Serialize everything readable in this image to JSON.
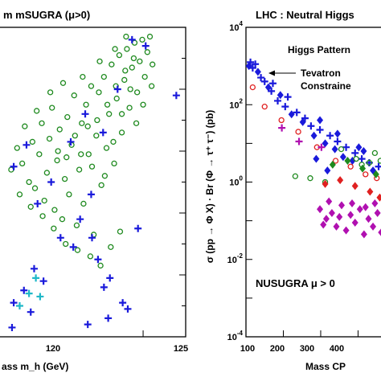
{
  "chart_data": [
    {
      "type": "scatter",
      "title": "m mSUGRA (μ>0)",
      "xlabel": "ass m_h (GeV)",
      "x_ticks": [
        "120",
        "125"
      ],
      "xlim": [
        103,
        125
      ],
      "ylim": [
        0,
        10
      ],
      "grid": false,
      "series": [
        {
          "marker": "circle-open",
          "color": "#1f8a1f",
          "points": [
            [
              105.2,
              6.1
            ],
            [
              105.8,
              5.6
            ],
            [
              106.1,
              6.8
            ],
            [
              106.6,
              5.0
            ],
            [
              107.0,
              6.3
            ],
            [
              107.3,
              4.8
            ],
            [
              107.8,
              5.9
            ],
            [
              108.1,
              6.9
            ],
            [
              108.4,
              4.4
            ],
            [
              108.7,
              5.3
            ],
            [
              109.0,
              6.4
            ],
            [
              109.3,
              7.4
            ],
            [
              109.6,
              4.1
            ],
            [
              109.9,
              5.7
            ],
            [
              110.2,
              6.7
            ],
            [
              110.5,
              3.8
            ],
            [
              110.8,
              5.1
            ],
            [
              111.1,
              7.1
            ],
            [
              111.3,
              4.6
            ],
            [
              111.6,
              6.2
            ],
            [
              111.9,
              7.8
            ],
            [
              112.2,
              3.6
            ],
            [
              112.5,
              5.4
            ],
            [
              112.8,
              6.9
            ],
            [
              113.0,
              4.3
            ],
            [
              113.3,
              7.5
            ],
            [
              113.6,
              5.9
            ],
            [
              113.9,
              8.1
            ],
            [
              114.2,
              3.3
            ],
            [
              114.5,
              6.5
            ],
            [
              114.8,
              7.9
            ],
            [
              115.1,
              4.9
            ],
            [
              115.4,
              8.4
            ],
            [
              115.7,
              6.1
            ],
            [
              116.0,
              7.2
            ],
            [
              116.3,
              8.8
            ],
            [
              116.6,
              5.6
            ],
            [
              116.9,
              7.7
            ],
            [
              117.2,
              9.1
            ],
            [
              117.5,
              6.6
            ],
            [
              117.8,
              8.3
            ],
            [
              118.1,
              9.3
            ],
            [
              118.4,
              7.4
            ],
            [
              118.7,
              8.7
            ],
            [
              119.0,
              9.5
            ],
            [
              119.3,
              7.9
            ],
            [
              119.6,
              8.9
            ],
            [
              119.9,
              9.6
            ],
            [
              120.2,
              8.4
            ],
            [
              120.5,
              9.2
            ],
            [
              120.8,
              9.7
            ],
            [
              121.1,
              8.8
            ],
            [
              112.0,
              6.5
            ],
            [
              113.5,
              6.8
            ],
            [
              114.6,
              7.0
            ],
            [
              115.8,
              7.5
            ],
            [
              116.8,
              8.1
            ],
            [
              117.9,
              8.6
            ],
            [
              118.9,
              9.0
            ],
            [
              110.0,
              6.0
            ],
            [
              111.0,
              5.8
            ],
            [
              112.7,
              5.9
            ],
            [
              114.0,
              5.5
            ],
            [
              115.5,
              5.2
            ],
            [
              116.5,
              6.3
            ],
            [
              117.5,
              7.2
            ],
            [
              118.5,
              8.0
            ],
            [
              106.8,
              4.2
            ],
            [
              108.2,
              3.9
            ],
            [
              109.5,
              3.5
            ],
            [
              110.9,
              3.0
            ],
            [
              112.3,
              2.8
            ],
            [
              113.8,
              2.6
            ],
            [
              115.0,
              2.3
            ],
            [
              116.2,
              2.9
            ],
            [
              117.3,
              3.4
            ],
            [
              119.2,
              6.9
            ],
            [
              120.0,
              7.5
            ],
            [
              121.0,
              8.1
            ],
            [
              104.5,
              5.4
            ],
            [
              105.5,
              4.6
            ],
            [
              107.5,
              7.3
            ],
            [
              109.1,
              7.9
            ],
            [
              110.6,
              8.2
            ],
            [
              112.9,
              8.4
            ],
            [
              114.9,
              8.9
            ],
            [
              116.7,
              9.3
            ],
            [
              118.0,
              9.7
            ]
          ]
        },
        {
          "marker": "plus",
          "color": "#1a1adb",
          "points": [
            [
              104.8,
              5.5
            ],
            [
              106.3,
              6.2
            ],
            [
              107.6,
              4.3
            ],
            [
              109.2,
              5.0
            ],
            [
              111.5,
              6.3
            ],
            [
              113.2,
              7.2
            ],
            [
              115.3,
              6.6
            ],
            [
              117.0,
              8.0
            ],
            [
              118.7,
              9.6
            ],
            [
              120.3,
              9.4
            ],
            [
              113.9,
              4.6
            ],
            [
              112.6,
              3.8
            ],
            [
              110.3,
              3.2
            ],
            [
              111.8,
              2.9
            ],
            [
              114.7,
              2.5
            ],
            [
              116.1,
              1.9
            ],
            [
              115.4,
              1.6
            ],
            [
              117.6,
              1.1
            ],
            [
              118.2,
              0.9
            ],
            [
              115.9,
              0.6
            ],
            [
              113.5,
              0.4
            ],
            [
              104.6,
              0.3
            ],
            [
              104.8,
              1.1
            ],
            [
              106.0,
              1.5
            ],
            [
              107.2,
              2.2
            ],
            [
              108.3,
              1.8
            ],
            [
              119.4,
              3.5
            ],
            [
              123.9,
              7.8
            ],
            [
              106.8,
              0.8
            ],
            [
              114.0,
              3.2
            ]
          ]
        },
        {
          "marker": "plus",
          "color": "#20b8c8",
          "points": [
            [
              107.4,
              1.9
            ],
            [
              106.6,
              1.4
            ],
            [
              107.9,
              1.3
            ],
            [
              105.5,
              1.0
            ]
          ]
        }
      ]
    },
    {
      "type": "scatter",
      "title": "LHC : Neutral Higgs",
      "xlabel": "Mass CP",
      "ylabel": "σ (pp → Φ X) · Br (Φ → τ⁺ τ⁻)  (pb)",
      "x_ticks": [
        "100",
        "200",
        "300",
        "400"
      ],
      "y_ticks": [
        {
          "exp": 4,
          "base": "10",
          "power": "4"
        },
        {
          "exp": 2,
          "base": "10",
          "power": "2"
        },
        {
          "exp": 0,
          "base": "10",
          "power": "0"
        },
        {
          "exp": -2,
          "base": "10",
          "power": "-2"
        },
        {
          "exp": -4,
          "base": "10",
          "power": "-4"
        }
      ],
      "xlim": [
        100,
        470
      ],
      "ylim_log10": [
        -4,
        4
      ],
      "grid": false,
      "annotations": [
        "Higgs Pattern",
        "Tevatron",
        "Constraine",
        "NUSUGRA μ > 0"
      ],
      "series": [
        {
          "marker": "plus",
          "color": "#1a1adb",
          "points": [
            [
              112,
              3.1
            ],
            [
              118,
              2.95
            ],
            [
              125,
              3.05
            ],
            [
              140,
              2.7
            ],
            [
              150,
              2.6
            ],
            [
              168,
              2.35
            ],
            [
              172,
              2.55
            ],
            [
              185,
              2.1
            ],
            [
              205,
              1.95
            ],
            [
              212,
              2.2
            ],
            [
              236,
              1.8
            ],
            [
              258,
              1.65
            ],
            [
              274,
              1.45
            ],
            [
              298,
              1.35
            ],
            [
              325,
              1.2
            ],
            [
              345,
              1.05
            ],
            [
              368,
              0.9
            ],
            [
              392,
              0.75
            ],
            [
              410,
              0.6
            ],
            [
              430,
              0.5
            ],
            [
              455,
              0.4
            ]
          ]
        },
        {
          "marker": "diamond",
          "color": "#1a1adb",
          "points": [
            [
              108,
              3.0
            ],
            [
              132,
              2.85
            ],
            [
              160,
              2.45
            ],
            [
              192,
              2.25
            ],
            [
              222,
              1.75
            ],
            [
              252,
              1.55
            ],
            [
              282,
              1.2
            ],
            [
              312,
              1.0
            ],
            [
              338,
              0.85
            ],
            [
              360,
              0.65
            ],
            [
              385,
              0.55
            ],
            [
              415,
              0.8
            ],
            [
              440,
              0.3
            ],
            [
              288,
              0.6
            ],
            [
              318,
              0.3
            ],
            [
              298,
              1.6
            ],
            [
              345,
              1.25
            ],
            [
              402,
              0.9
            ]
          ]
        },
        {
          "marker": "circle-open",
          "color": "#e02020",
          "points": [
            [
              118,
              2.45
            ],
            [
              150,
              1.95
            ],
            [
              195,
              1.6
            ],
            [
              240,
              1.3
            ],
            [
              290,
              0.9
            ],
            [
              340,
              0.55
            ],
            [
              380,
              0.4
            ],
            [
              420,
              0.2
            ],
            [
              450,
              0.1
            ]
          ]
        },
        {
          "marker": "circle-open",
          "color": "#1f8a1f",
          "points": [
            [
              232,
              0.15
            ],
            [
              272,
              0.1
            ],
            [
              312,
              0.0
            ],
            [
              355,
              0.85
            ],
            [
              395,
              0.6
            ],
            [
              430,
              0.5
            ],
            [
              460,
              0.55
            ],
            [
              445,
              0.75
            ],
            [
              410,
              0.45
            ]
          ]
        },
        {
          "marker": "diamond",
          "color": "#e02020",
          "points": [
            [
              312,
              -0.05
            ],
            [
              352,
              0.05
            ],
            [
              392,
              -0.1
            ],
            [
              432,
              -0.25
            ],
            [
              458,
              -0.4
            ]
          ]
        },
        {
          "marker": "diamond",
          "color": "#1f8a1f",
          "points": [
            [
              332,
              0.45
            ],
            [
              372,
              0.55
            ],
            [
              412,
              0.35
            ],
            [
              448,
              0.2
            ]
          ]
        },
        {
          "marker": "diamond",
          "color": "#b010b0",
          "points": [
            [
              298,
              -0.7
            ],
            [
              315,
              -0.95
            ],
            [
              330,
              -0.8
            ],
            [
              342,
              -1.15
            ],
            [
              356,
              -0.6
            ],
            [
              368,
              -1.25
            ],
            [
              380,
              -0.85
            ],
            [
              392,
              -1.05
            ],
            [
              405,
              -0.7
            ],
            [
              416,
              -1.35
            ],
            [
              428,
              -0.95
            ],
            [
              440,
              -1.15
            ],
            [
              452,
              -0.8
            ],
            [
              462,
              -1.3
            ],
            [
              322,
              -0.5
            ],
            [
              350,
              -0.9
            ],
            [
              384,
              -0.55
            ],
            [
              420,
              -0.65
            ],
            [
              445,
              -0.55
            ],
            [
              307,
              -1.1
            ]
          ]
        },
        {
          "marker": "plus",
          "color": "#b010b0",
          "points": [
            [
              196,
              1.4
            ],
            [
              242,
              1.05
            ],
            [
              302,
              0.9
            ]
          ]
        }
      ]
    }
  ]
}
